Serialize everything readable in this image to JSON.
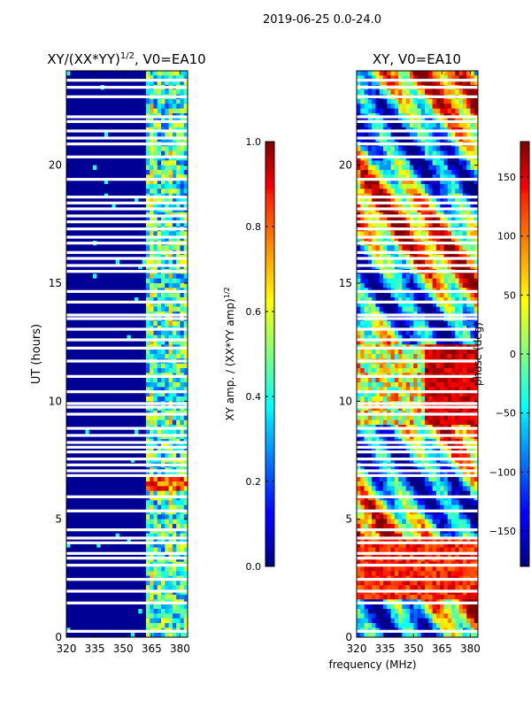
{
  "suptitle": "2019-06-25 0.0-24.0",
  "shared_xlabel": "frequency (MHz)",
  "chart_data": [
    {
      "type": "heatmap",
      "title_main": "XY/(XX*YY)",
      "title_exp": "1/2",
      "title_tail": ", V0=EA10",
      "ylabel": "UT (hours)",
      "xlim": [
        320,
        384
      ],
      "ylim": [
        0,
        24
      ],
      "xticks": [
        320,
        335,
        350,
        365,
        380
      ],
      "yticks": [
        0,
        5,
        10,
        15,
        20
      ],
      "colormap": "jet",
      "colorbar": {
        "label_main": "XY amp. / (XX*YY amp)",
        "label_exp": "1/2",
        "range": [
          0.0,
          1.0
        ],
        "ticks": [
          "0.0",
          "0.2",
          "0.4",
          "0.6",
          "0.8",
          "1.0"
        ],
        "tick_values": [
          0.0,
          0.2,
          0.4,
          0.6,
          0.8,
          1.0
        ]
      },
      "gap_hours_ut": [
        0.25,
        1.45,
        1.95,
        2.45,
        3.05,
        3.35,
        3.55,
        4.0,
        4.2,
        4.55,
        5.35,
        5.95,
        6.85,
        7.05,
        7.3,
        7.55,
        7.85,
        8.05,
        8.25,
        8.55,
        8.85,
        9.45,
        9.75,
        9.9,
        10.4,
        11.05,
        11.7,
        12.25,
        12.6,
        13.05,
        13.5,
        13.65,
        14.2,
        14.65,
        15.5,
        15.75,
        16.05,
        16.3,
        16.7,
        16.95,
        17.3,
        17.6,
        17.85,
        18.15,
        18.4,
        18.65,
        19.4,
        20.35,
        20.9,
        21.15,
        21.45,
        21.85,
        22.05,
        22.9,
        23.3,
        23.6
      ]
    },
    {
      "type": "heatmap",
      "title": "XY, V0=EA10",
      "xlim": [
        320,
        384
      ],
      "ylim": [
        0,
        24
      ],
      "xticks": [
        320,
        335,
        350,
        365,
        380
      ],
      "yticks": [
        0,
        5,
        10,
        15,
        20
      ],
      "colormap": "jet",
      "colorbar": {
        "label": "phase (deg)",
        "range": [
          -180,
          180
        ],
        "ticks": [
          "150",
          "100",
          "50",
          "0",
          "−50",
          "−100",
          "−150"
        ],
        "tick_values": [
          150,
          100,
          50,
          0,
          -50,
          -100,
          -150
        ]
      },
      "gap_hours_ut": [
        0.25,
        1.45,
        1.95,
        2.45,
        3.05,
        3.35,
        3.55,
        4.0,
        4.2,
        4.55,
        5.35,
        5.95,
        6.85,
        7.05,
        7.3,
        7.55,
        7.85,
        8.05,
        8.25,
        8.55,
        8.85,
        9.45,
        9.75,
        9.9,
        10.4,
        11.05,
        11.7,
        12.25,
        12.6,
        13.05,
        13.5,
        13.65,
        14.2,
        14.65,
        15.5,
        15.75,
        16.05,
        16.3,
        16.7,
        16.95,
        17.3,
        17.6,
        17.85,
        18.15,
        18.4,
        18.65,
        19.4,
        20.35,
        20.9,
        21.15,
        21.45,
        21.85,
        22.05,
        22.9,
        23.3,
        23.6
      ]
    }
  ]
}
